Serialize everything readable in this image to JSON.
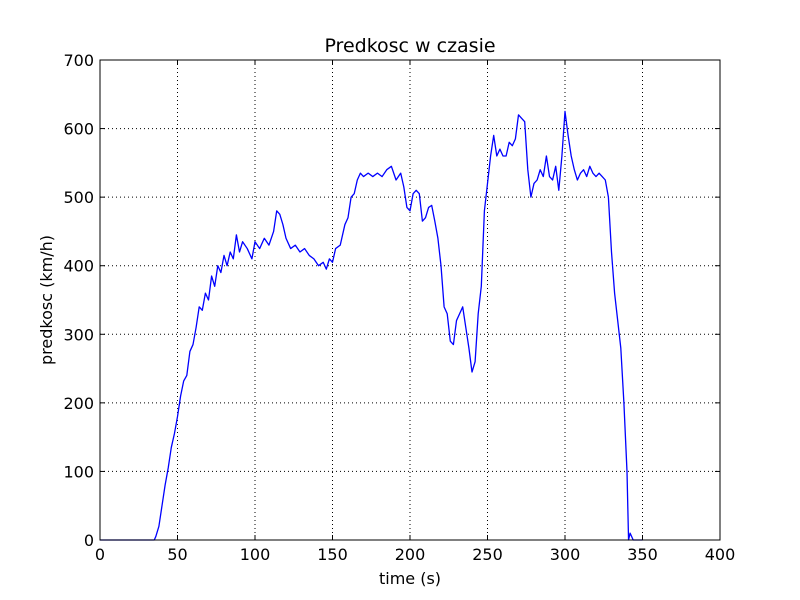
{
  "chart_data": {
    "type": "line",
    "title": "Predkosc w czasie",
    "x_label": "time (s)",
    "y_label": "predkosc (km/h)",
    "x": [
      0,
      30,
      35,
      36,
      38,
      40,
      42,
      44,
      46,
      48,
      50,
      52,
      54,
      56,
      58,
      60,
      62,
      64,
      66,
      68,
      70,
      72,
      74,
      76,
      78,
      80,
      82,
      84,
      86,
      88,
      90,
      92,
      95,
      98,
      100,
      103,
      106,
      109,
      112,
      114,
      116,
      118,
      120,
      123,
      126,
      129,
      132,
      135,
      138,
      141,
      144,
      146,
      148,
      150,
      152,
      155,
      158,
      160,
      162,
      164,
      166,
      168,
      170,
      173,
      176,
      179,
      182,
      185,
      188,
      191,
      194,
      196,
      198,
      200,
      202,
      204,
      206,
      208,
      210,
      212,
      214,
      216,
      218,
      220,
      222,
      224,
      226,
      228,
      230,
      232,
      234,
      236,
      238,
      240,
      242,
      244,
      246,
      248,
      250,
      252,
      254,
      256,
      258,
      260,
      262,
      264,
      266,
      268,
      270,
      272,
      274,
      276,
      278,
      280,
      282,
      284,
      286,
      288,
      290,
      292,
      294,
      296,
      298,
      300,
      302,
      304,
      306,
      308,
      310,
      312,
      314,
      316,
      318,
      320,
      322,
      324,
      326,
      328,
      330,
      332,
      334,
      336,
      338,
      340,
      341,
      342,
      344,
      350
    ],
    "values": [
      0,
      0,
      0,
      5,
      20,
      50,
      80,
      105,
      135,
      155,
      180,
      210,
      232,
      240,
      275,
      285,
      310,
      340,
      335,
      360,
      350,
      385,
      370,
      400,
      390,
      415,
      400,
      420,
      410,
      445,
      420,
      435,
      425,
      410,
      435,
      425,
      440,
      430,
      450,
      480,
      475,
      460,
      440,
      425,
      430,
      420,
      425,
      415,
      410,
      400,
      405,
      395,
      410,
      405,
      425,
      430,
      460,
      470,
      500,
      505,
      525,
      535,
      530,
      535,
      530,
      535,
      530,
      540,
      545,
      525,
      535,
      515,
      485,
      480,
      505,
      510,
      505,
      465,
      470,
      485,
      488,
      465,
      440,
      400,
      340,
      330,
      290,
      285,
      320,
      330,
      340,
      310,
      280,
      245,
      260,
      330,
      370,
      480,
      520,
      560,
      590,
      560,
      570,
      560,
      560,
      580,
      575,
      585,
      620,
      615,
      610,
      540,
      500,
      520,
      525,
      540,
      530,
      560,
      530,
      525,
      545,
      510,
      560,
      625,
      590,
      560,
      540,
      525,
      535,
      540,
      530,
      545,
      535,
      530,
      535,
      530,
      525,
      500,
      420,
      360,
      320,
      280,
      200,
      100,
      0,
      10,
      0,
      0
    ],
    "color": "#0000ff",
    "xlim": [
      0,
      400
    ],
    "xticks": [
      0,
      50,
      100,
      150,
      200,
      250,
      300,
      350,
      400
    ],
    "ylim": [
      0,
      700
    ],
    "yticks": [
      0,
      100,
      200,
      300,
      400,
      500,
      600,
      700
    ],
    "grid": true
  }
}
